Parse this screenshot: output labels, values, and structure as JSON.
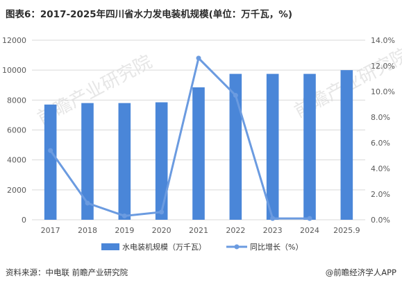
{
  "title": "图表6：2017-2025年四川省水力发电装机规模(单位：万千瓦，%)",
  "source": "资料来源：中电联 前瞻产业研究院",
  "credit": "@前瞻经济学人APP",
  "watermark": "前瞻产业研究院",
  "colors": {
    "bar": "#4a86d8",
    "line": "#6b9be0",
    "grid": "#d9d9d9",
    "axis_text": "#595959"
  },
  "chart_data": {
    "type": "bar",
    "categories": [
      "2017",
      "2018",
      "2019",
      "2020",
      "2021",
      "2022",
      "2023",
      "2024",
      "2025.9"
    ],
    "series": [
      {
        "name": "水电装机规模（万千瓦）",
        "type": "bar",
        "axis": "left",
        "values": [
          7700,
          7800,
          7800,
          7850,
          8850,
          9750,
          9750,
          9750,
          10000
        ]
      },
      {
        "name": "同比增长（%）",
        "type": "line",
        "axis": "right",
        "values": [
          5.4,
          1.3,
          0.3,
          0.6,
          12.6,
          9.7,
          0.1,
          0.1,
          null
        ]
      }
    ],
    "y_left": {
      "min": 0,
      "max": 12000,
      "ticks": [
        "0",
        "2000",
        "4000",
        "6000",
        "8000",
        "10000",
        "12000"
      ]
    },
    "y_right": {
      "min": 0,
      "max": 14,
      "ticks": [
        "0.0%",
        "2.0%",
        "4.0%",
        "6.0%",
        "8.0%",
        "10.0%",
        "12.0%",
        "14.0%"
      ]
    },
    "grid": true,
    "legend_position": "bottom"
  }
}
